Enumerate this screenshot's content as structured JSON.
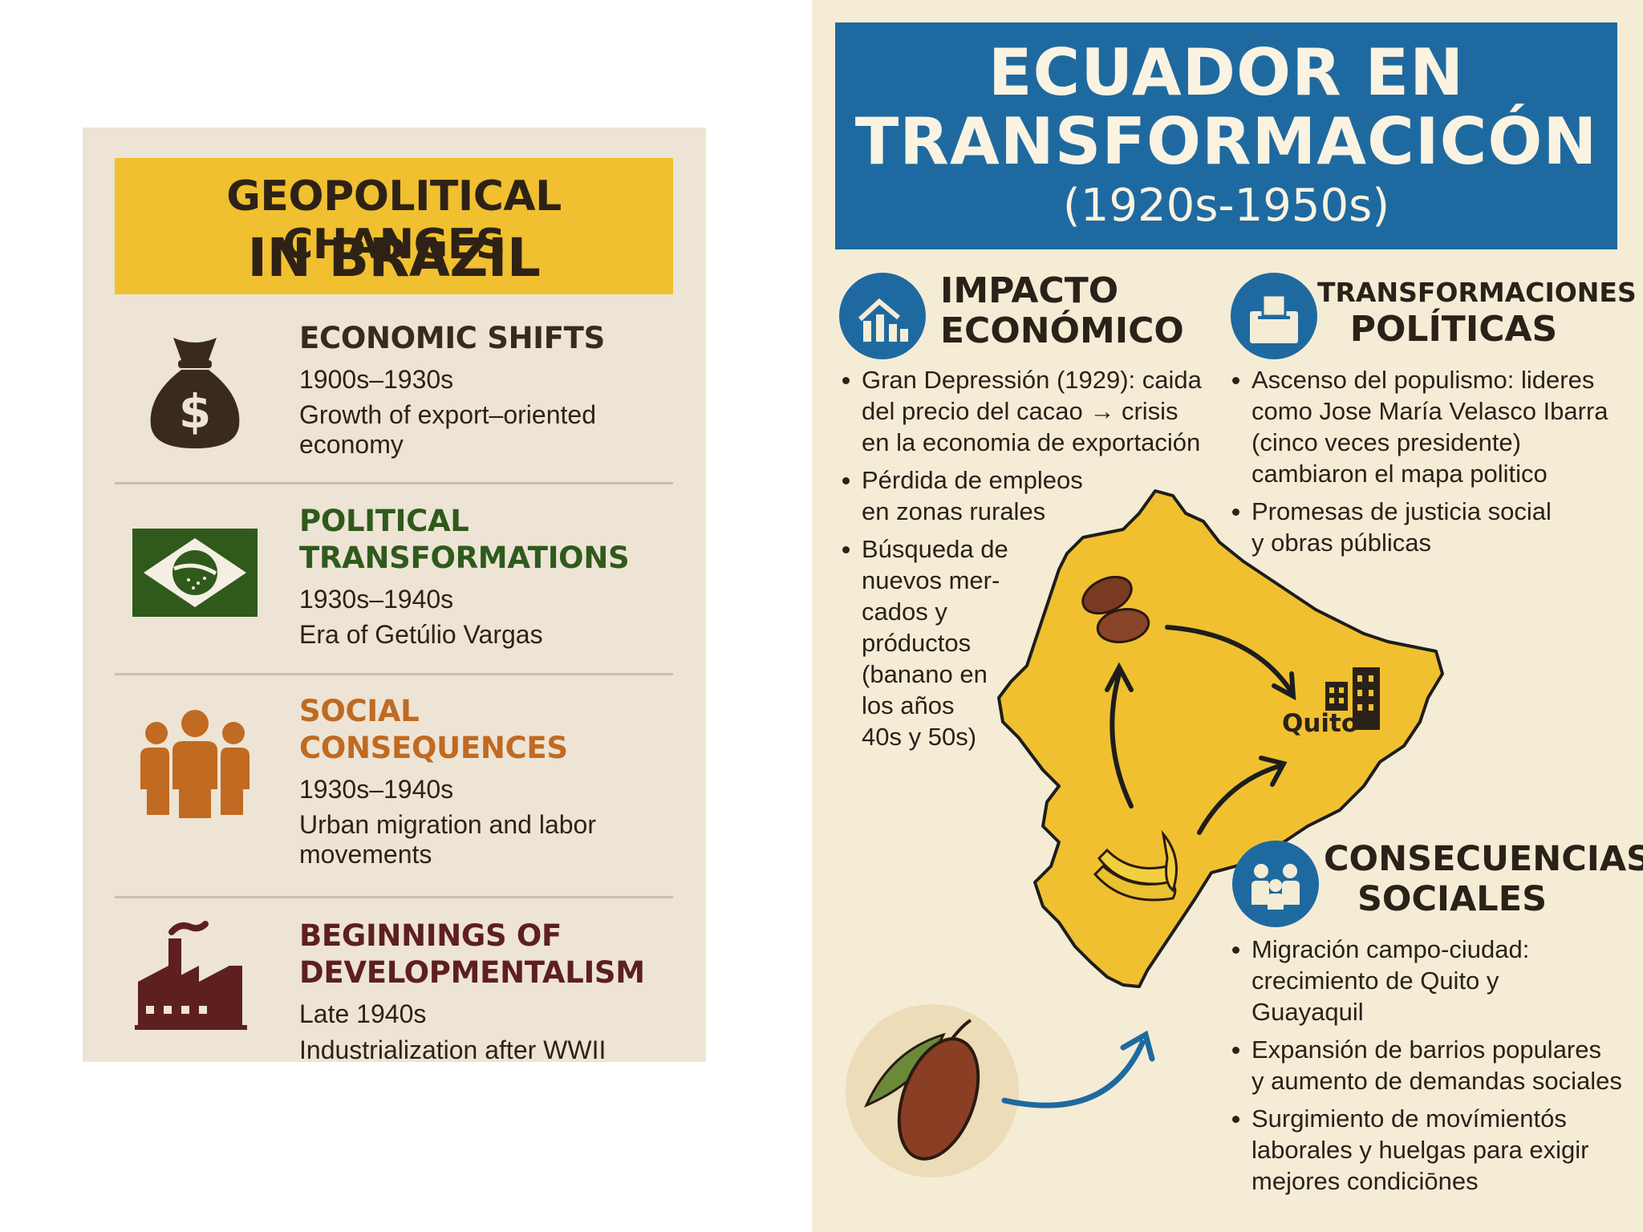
{
  "brazil": {
    "title_line1": "GEOPOLITICAL CHANGES",
    "title_line2": "IN BRAZIL",
    "items": [
      {
        "title_line1": "ECONOMIC SHIFTS",
        "title_line2": "",
        "period": "1900s–1930s",
        "desc_line1": "Growth of export–oriented",
        "desc_line2": "economy",
        "color": "#3a2a1e",
        "icon": "money-bag-icon"
      },
      {
        "title_line1": "POLITICAL",
        "title_line2": "TRANSFORMATIONS",
        "period": "1930s–1940s",
        "desc_line1": "Era of Getúlio Vargas",
        "desc_line2": "",
        "color": "#2f5a1c",
        "icon": "brazil-flag-icon"
      },
      {
        "title_line1": "SOCIAL",
        "title_line2": "CONSEQUENCES",
        "period": "1930s–1940s",
        "desc_line1": "Urban migration and labor",
        "desc_line2": "movements",
        "color": "#c06a22",
        "icon": "people-group-icon"
      },
      {
        "title_line1": "BEGINNINGS OF",
        "title_line2": "DEVELOPMENTALISM",
        "period": "Late 1940s",
        "desc_line1": "Industrialization after WWII",
        "desc_line2": "",
        "color": "#5e1f1f",
        "icon": "factory-icon"
      }
    ]
  },
  "ecuador": {
    "title_line1": "ECUADOR EN",
    "title_line2": "TRANSFORMACICÓN",
    "title_line3": "(1920s-1950s)",
    "economic": {
      "title_line1": "IMPACTO",
      "title_line2": "ECONÓMICO",
      "icon": "economy-chart-icon",
      "bullets": [
        [
          "Gran Depressión (1929): caida",
          "del precio del cacao → crisis",
          "en la economia de exportación"
        ],
        [
          "Pérdida de empleos",
          "en zonas rurales"
        ],
        [
          "Búsqueda de",
          "nuevos mer-",
          "cados y",
          "próductos",
          "(banano en",
          "los años",
          "40s y 50s)"
        ]
      ]
    },
    "political": {
      "title_line1": "TRANSFORMACIONES",
      "title_line2": "POLÍTICAS",
      "icon": "ballot-box-icon",
      "bullets": [
        [
          "Ascenso del populismo: lideres",
          "como Jose María Velasco Ibarra",
          "(cinco veces presidente)",
          "cambiaron el mapa politico"
        ],
        [
          "Promesas de justicia social",
          "y obras públicas"
        ]
      ]
    },
    "social": {
      "title_line1": "CONSECUENCIAS",
      "title_line2": "SOCIALES",
      "icon": "family-icon",
      "bullets": [
        [
          "Migración campo-ciudad:",
          "crecimiento de Quito y",
          "Guayaquil"
        ],
        [
          "Expansión de barrios populares",
          "y aumento de demandas sociales"
        ],
        [
          "Surgimiento de movímientós",
          "laborales y huelgas para exigir",
          "mejores condiciōnes"
        ]
      ]
    },
    "map_label": "Quito",
    "colors": {
      "blue": "#1e6aa0",
      "map_yellow": "#f0c030",
      "cream": "#f5ecd6"
    }
  }
}
